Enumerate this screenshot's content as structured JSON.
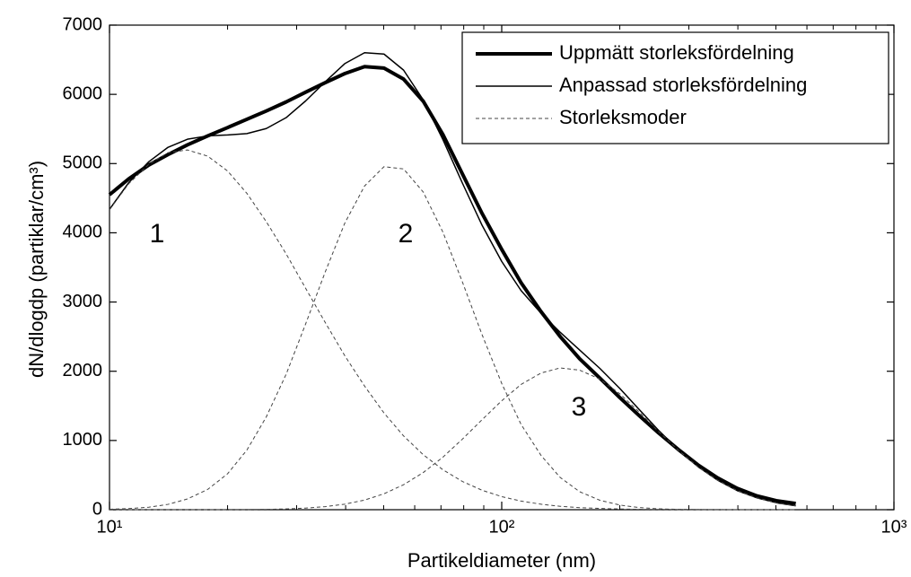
{
  "chart_data": {
    "type": "line",
    "xlabel": "Partikeldiameter (nm)",
    "ylabel": "dN/dlogdp (partiklar/cm³)",
    "xscale": "log",
    "xlim": [
      10,
      1000
    ],
    "ylim": [
      0,
      7000
    ],
    "xticks": [
      {
        "value": 10,
        "label": "10¹"
      },
      {
        "value": 100,
        "label": "10²"
      },
      {
        "value": 1000,
        "label": "10³"
      }
    ],
    "xminorticks": [
      20,
      30,
      40,
      50,
      60,
      70,
      80,
      90,
      200,
      300,
      400,
      500,
      600,
      700,
      800,
      900
    ],
    "yticks": [
      0,
      1000,
      2000,
      3000,
      4000,
      5000,
      6000,
      7000
    ],
    "grid": false,
    "legend": "upper right",
    "annotations": [
      "1",
      "2",
      "3"
    ],
    "x": [
      10,
      11.2,
      12.6,
      14.1,
      15.8,
      17.8,
      20,
      22.4,
      25.1,
      28.2,
      31.6,
      35.5,
      39.8,
      44.7,
      50.1,
      56.2,
      63.1,
      70.8,
      79.4,
      89.1,
      100,
      112,
      126,
      141,
      158,
      178,
      200,
      224,
      251,
      282,
      316,
      355,
      398,
      447,
      501,
      562
    ],
    "series": [
      {
        "name": "Uppmätt storleksfördelning",
        "color": "#000000",
        "linewidth": 4,
        "linestyle": "solid",
        "values": [
          4550,
          4780,
          4980,
          5130,
          5270,
          5400,
          5520,
          5640,
          5760,
          5890,
          6030,
          6170,
          6300,
          6400,
          6380,
          6220,
          5900,
          5420,
          4850,
          4280,
          3760,
          3280,
          2860,
          2500,
          2180,
          1900,
          1620,
          1360,
          1110,
          870,
          650,
          460,
          310,
          200,
          130,
          90
        ]
      },
      {
        "name": "Anpassad storleksfördelning",
        "color": "#000000",
        "linewidth": 1.5,
        "linestyle": "solid",
        "values": [
          4339,
          4726,
          5027,
          5235,
          5352,
          5400,
          5413,
          5433,
          5506,
          5663,
          5903,
          6183,
          6444,
          6601,
          6582,
          6350,
          5919,
          5346,
          4717,
          4109,
          3586,
          3166,
          2837,
          2562,
          2306,
          2040,
          1752,
          1449,
          1147,
          867,
          624,
          427,
          277,
          172,
          101,
          56
        ]
      },
      {
        "name": "Storleksmoder",
        "color": "#444444",
        "linewidth": 1,
        "linestyle": "dashed",
        "values": [
          4333,
          4710,
          4991,
          5158,
          5197,
          5107,
          4893,
          4570,
          4161,
          3697,
          3202,
          2702,
          2224,
          1786,
          1397,
          1066,
          794,
          577,
          408,
          281,
          189,
          124,
          79,
          49,
          30,
          18,
          10,
          6,
          3,
          2,
          1,
          0,
          0,
          0,
          0,
          0
        ]
      },
      {
        "color": "#444444",
        "linewidth": 1,
        "linestyle": "dashed",
        "values": [
          6,
          16,
          36,
          77,
          155,
          293,
          519,
          861,
          1340,
          1955,
          2678,
          3437,
          4140,
          4676,
          4955,
          4923,
          4588,
          4010,
          3289,
          2528,
          1823,
          1233,
          783,
          465,
          260,
          136,
          67,
          31,
          13,
          5,
          2,
          1,
          0,
          0,
          0,
          0
        ]
      },
      {
        "color": "#444444",
        "linewidth": 1,
        "linestyle": "dashed",
        "values": [
          0,
          0,
          0,
          0,
          0,
          0,
          1,
          2,
          5,
          11,
          23,
          44,
          80,
          139,
          230,
          361,
          537,
          759,
          1020,
          1300,
          1574,
          1809,
          1975,
          2048,
          2016,
          1886,
          1675,
          1412,
          1131,
          860,
          621,
          426,
          277,
          172,
          101,
          56
        ]
      }
    ]
  }
}
